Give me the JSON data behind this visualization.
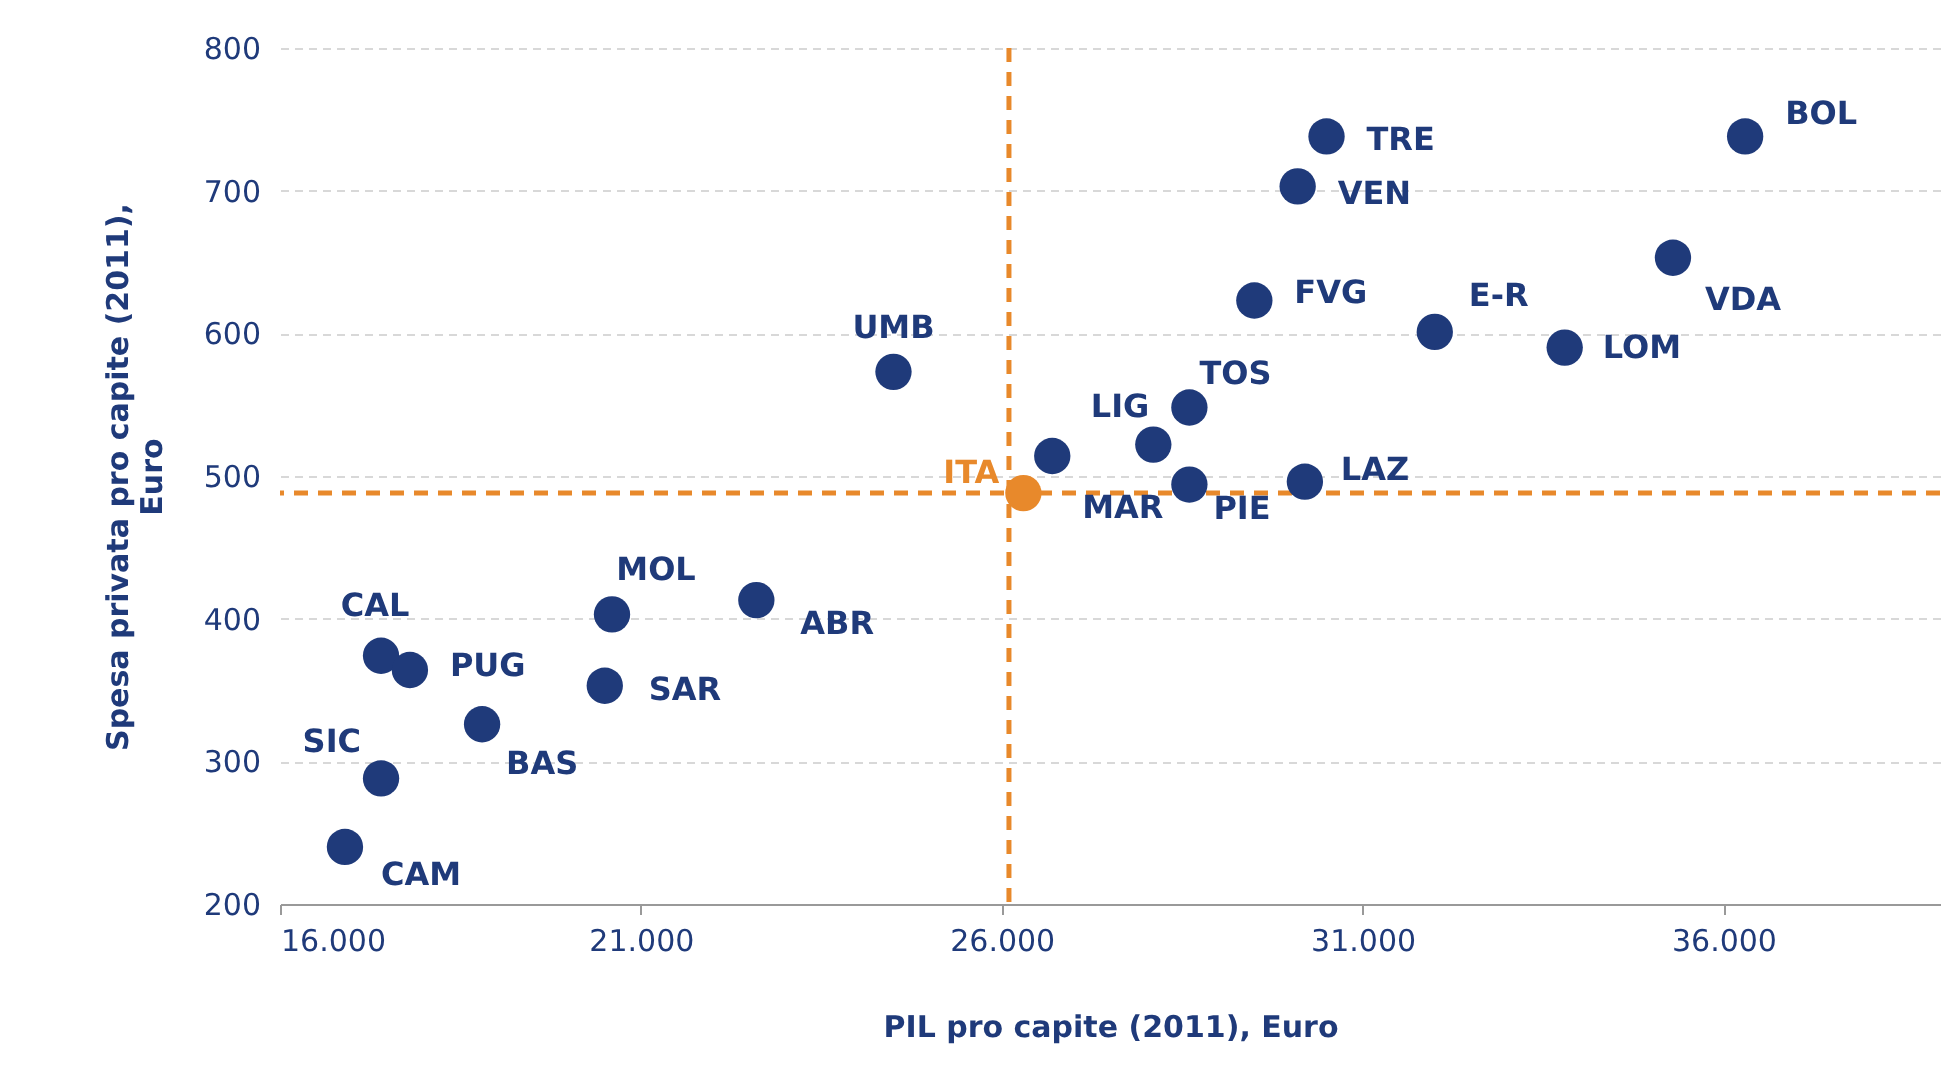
{
  "chart_data": {
    "type": "scatter",
    "xlabel": "PIL pro capite (2011), Euro",
    "ylabel": "Spesa privata pro capite (2011), Euro",
    "xlim": [
      16000,
      39000
    ],
    "xticks": [
      {
        "value": 16000,
        "label": "16.000"
      },
      {
        "value": 21000,
        "label": "21.000"
      },
      {
        "value": 26000,
        "label": "26.000"
      },
      {
        "value": 31000,
        "label": "31.000"
      },
      {
        "value": 36000,
        "label": "36.000"
      }
    ],
    "ylim": [
      200,
      800
    ],
    "yticks": [
      200,
      300,
      400,
      500,
      600,
      700,
      800
    ],
    "grid": "y",
    "marker": "circle",
    "series": [
      {
        "color": "#1f3a7a",
        "x": [
          16900,
          17400,
          17400,
          17800,
          18800,
          20500,
          20600,
          22600,
          24500,
          26700,
          28100,
          28600,
          28600,
          30200,
          29500,
          30100,
          30500,
          32000,
          33800,
          35300,
          36300
        ],
        "values": [
          240,
          288,
          374,
          364,
          326,
          353,
          403,
          413,
          573,
          514,
          522,
          548,
          494,
          496,
          623,
          703,
          738,
          601,
          590,
          653,
          738
        ]
      },
      {
        "color": "#e8892b",
        "x": [
          26300
        ],
        "values": [
          488
        ]
      }
    ],
    "ref_lines": [
      {
        "axis": "x",
        "value": 26100,
        "color": "#e8892b",
        "line_style": "dashed"
      },
      {
        "axis": "y",
        "value": 488,
        "color": "#e8892b",
        "line_style": "dashed"
      }
    ],
    "annotations": [
      {
        "text": "CAM",
        "x": 16900,
        "y": 240
      },
      {
        "text": "SIC",
        "x": 17400,
        "y": 288
      },
      {
        "text": "CAL",
        "x": 17400,
        "y": 374
      },
      {
        "text": "PUG",
        "x": 17800,
        "y": 364
      },
      {
        "text": "BAS",
        "x": 18800,
        "y": 326
      },
      {
        "text": "SAR",
        "x": 20500,
        "y": 353
      },
      {
        "text": "MOL",
        "x": 20600,
        "y": 403
      },
      {
        "text": "ABR",
        "x": 22600,
        "y": 413
      },
      {
        "text": "UMB",
        "x": 24500,
        "y": 573
      },
      {
        "text": "MAR",
        "x": 26700,
        "y": 514
      },
      {
        "text": "LIG",
        "x": 28100,
        "y": 522
      },
      {
        "text": "TOS",
        "x": 28600,
        "y": 548
      },
      {
        "text": "PIE",
        "x": 28600,
        "y": 494
      },
      {
        "text": "LAZ",
        "x": 30200,
        "y": 496
      },
      {
        "text": "FVG",
        "x": 29500,
        "y": 623
      },
      {
        "text": "VEN",
        "x": 30100,
        "y": 703
      },
      {
        "text": "TRE",
        "x": 30500,
        "y": 738
      },
      {
        "text": "E-R",
        "x": 32000,
        "y": 601
      },
      {
        "text": "LOM",
        "x": 33800,
        "y": 590
      },
      {
        "text": "VDA",
        "x": 35300,
        "y": 653
      },
      {
        "text": "BOL",
        "x": 36300,
        "y": 738
      },
      {
        "text": "ITA",
        "x": 26300,
        "y": 488
      }
    ]
  }
}
